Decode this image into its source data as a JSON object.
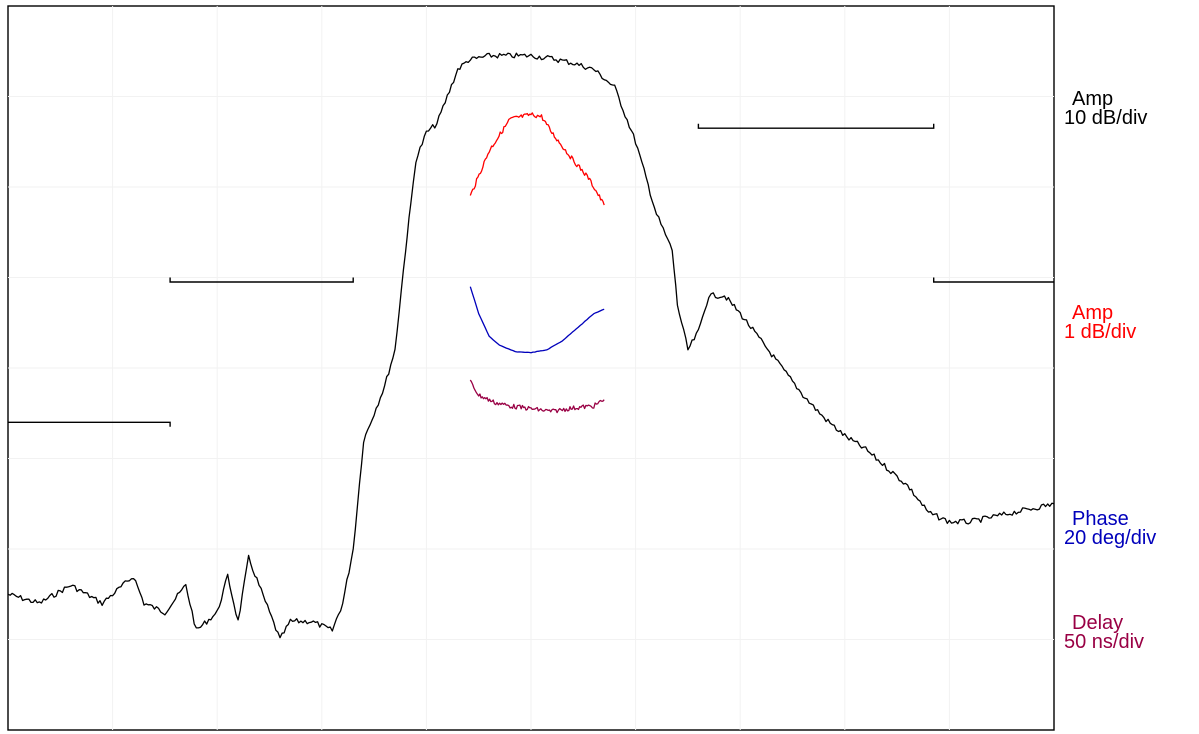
{
  "chart_data": {
    "type": "line",
    "title": "",
    "xlabel": "",
    "ylabel": "",
    "grid": true,
    "legend_placement": "right",
    "x_divisions": 10,
    "y_divisions": 8,
    "series": [
      {
        "key": "amp_wide",
        "label_line1": "Amp",
        "label_line2": "10 dB/div",
        "color": "#000000",
        "points": [
          [
            0.0,
            6.5
          ],
          [
            0.3,
            6.6
          ],
          [
            0.6,
            6.4
          ],
          [
            0.9,
            6.6
          ],
          [
            1.2,
            6.3
          ],
          [
            1.3,
            6.6
          ],
          [
            1.5,
            6.7
          ],
          [
            1.7,
            6.4
          ],
          [
            1.8,
            6.9
          ],
          [
            2.0,
            6.7
          ],
          [
            2.1,
            6.3
          ],
          [
            2.2,
            6.8
          ],
          [
            2.3,
            6.1
          ],
          [
            2.5,
            6.7
          ],
          [
            2.6,
            7.0
          ],
          [
            2.7,
            6.8
          ],
          [
            2.9,
            6.8
          ],
          [
            3.1,
            6.9
          ],
          [
            3.2,
            6.6
          ],
          [
            3.3,
            6.0
          ],
          [
            3.4,
            4.8
          ],
          [
            3.6,
            4.2
          ],
          [
            3.7,
            3.8
          ],
          [
            3.8,
            2.7
          ],
          [
            3.85,
            2.2
          ],
          [
            3.9,
            1.7
          ],
          [
            4.0,
            1.4
          ],
          [
            4.1,
            1.3
          ],
          [
            4.3,
            0.7
          ],
          [
            4.4,
            0.6
          ],
          [
            4.6,
            0.55
          ],
          [
            4.8,
            0.55
          ],
          [
            5.0,
            0.55
          ],
          [
            5.2,
            0.58
          ],
          [
            5.4,
            0.63
          ],
          [
            5.6,
            0.7
          ],
          [
            5.8,
            0.9
          ],
          [
            6.0,
            1.5
          ],
          [
            6.2,
            2.3
          ],
          [
            6.35,
            2.7
          ],
          [
            6.4,
            3.3
          ],
          [
            6.5,
            3.8
          ],
          [
            6.6,
            3.6
          ],
          [
            6.7,
            3.2
          ],
          [
            6.85,
            3.2
          ],
          [
            7.0,
            3.4
          ],
          [
            7.2,
            3.7
          ],
          [
            7.4,
            4.0
          ],
          [
            7.6,
            4.3
          ],
          [
            7.8,
            4.55
          ],
          [
            8.0,
            4.75
          ],
          [
            8.2,
            4.9
          ],
          [
            8.4,
            5.1
          ],
          [
            8.6,
            5.3
          ],
          [
            8.8,
            5.6
          ],
          [
            9.0,
            5.7
          ],
          [
            9.2,
            5.7
          ],
          [
            9.4,
            5.65
          ],
          [
            9.6,
            5.6
          ],
          [
            9.8,
            5.55
          ],
          [
            10.0,
            5.5
          ]
        ]
      },
      {
        "key": "amp_fine",
        "label_line1": "Amp",
        "label_line2": "1 dB/div",
        "color": "#ff0000",
        "points": [
          [
            4.42,
            2.1
          ],
          [
            4.6,
            1.6
          ],
          [
            4.8,
            1.25
          ],
          [
            5.0,
            1.2
          ],
          [
            5.1,
            1.22
          ],
          [
            5.2,
            1.4
          ],
          [
            5.4,
            1.7
          ],
          [
            5.55,
            1.9
          ],
          [
            5.7,
            2.2
          ]
        ]
      },
      {
        "key": "phase",
        "label_line1": "Phase",
        "label_line2": "20 deg/div",
        "color": "#0000bb",
        "points": [
          [
            4.42,
            3.1
          ],
          [
            4.5,
            3.4
          ],
          [
            4.6,
            3.65
          ],
          [
            4.7,
            3.75
          ],
          [
            4.85,
            3.82
          ],
          [
            5.0,
            3.83
          ],
          [
            5.15,
            3.8
          ],
          [
            5.3,
            3.7
          ],
          [
            5.45,
            3.55
          ],
          [
            5.6,
            3.4
          ],
          [
            5.7,
            3.35
          ]
        ]
      },
      {
        "key": "delay",
        "label_line1": "Delay",
        "label_line2": "50 ns/div",
        "color": "#990044",
        "points": [
          [
            4.42,
            4.15
          ],
          [
            4.5,
            4.3
          ],
          [
            4.65,
            4.38
          ],
          [
            4.8,
            4.42
          ],
          [
            5.0,
            4.45
          ],
          [
            5.2,
            4.48
          ],
          [
            5.35,
            4.45
          ],
          [
            5.5,
            4.43
          ],
          [
            5.6,
            4.42
          ],
          [
            5.7,
            4.35
          ]
        ]
      }
    ],
    "masks": [
      {
        "points": [
          [
            0.0,
            4.6
          ],
          [
            1.55,
            4.6
          ],
          [
            1.55,
            4.65
          ]
        ]
      },
      {
        "points": [
          [
            1.55,
            3.0
          ],
          [
            1.55,
            3.05
          ],
          [
            3.3,
            3.05
          ],
          [
            3.3,
            3.0
          ]
        ]
      },
      {
        "points": [
          [
            6.6,
            1.3
          ],
          [
            6.6,
            1.35
          ],
          [
            8.85,
            1.35
          ],
          [
            8.85,
            1.3
          ]
        ]
      },
      {
        "points": [
          [
            8.85,
            3.0
          ],
          [
            8.85,
            3.05
          ],
          [
            10.0,
            3.05
          ]
        ]
      }
    ]
  }
}
